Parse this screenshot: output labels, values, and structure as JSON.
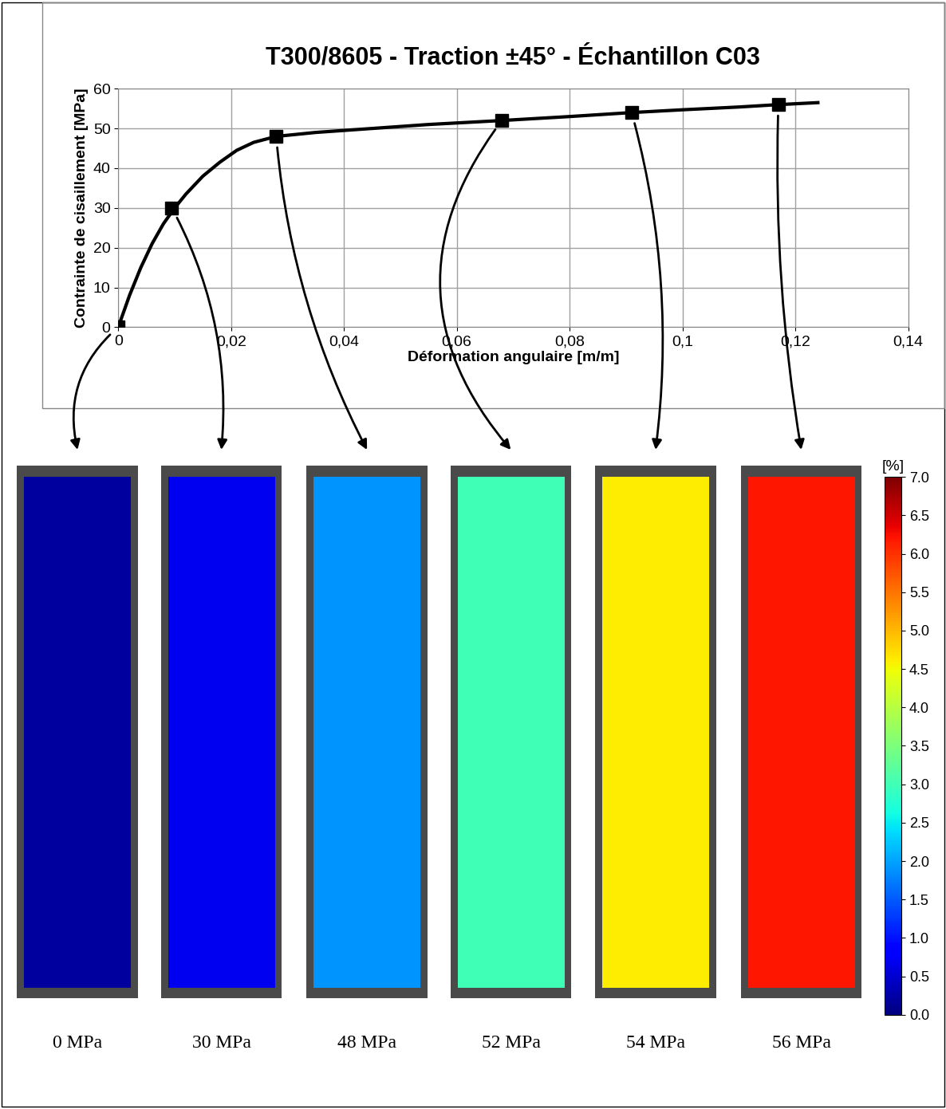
{
  "chart_data": {
    "type": "line",
    "title": "T300/8605 - Traction ±45° - Échantillon C03",
    "x_label": "Déformation angulaire [m/m]",
    "y_label": "Contrainte de cisaillement [MPa]",
    "xlim": [
      0,
      0.14
    ],
    "xticks": [
      {
        "value": 0,
        "label": "0"
      },
      {
        "value": 0.02,
        "label": "0,02"
      },
      {
        "value": 0.04,
        "label": "0,04"
      },
      {
        "value": 0.06,
        "label": "0,06"
      },
      {
        "value": 0.08,
        "label": "0,08"
      },
      {
        "value": 0.1,
        "label": "0,1"
      },
      {
        "value": 0.12,
        "label": "0,12"
      },
      {
        "value": 0.14,
        "label": "0,14"
      }
    ],
    "ylim": [
      0,
      60
    ],
    "yticks": [
      0,
      10,
      20,
      30,
      40,
      50,
      60
    ],
    "grid": true,
    "series": [
      {
        "type": "line",
        "color": "#000000",
        "line_style": "solid",
        "x": [
          0,
          0.002,
          0.004,
          0.006,
          0.008,
          0.01,
          0.012,
          0.015,
          0.018,
          0.021,
          0.024,
          0.028,
          0.035,
          0.045,
          0.055,
          0.068,
          0.08,
          0.091,
          0.1,
          0.11,
          0.117,
          0.124
        ],
        "values": [
          0,
          8,
          15,
          21,
          26,
          30,
          33.5,
          38,
          41.5,
          44.5,
          46.5,
          48,
          49,
          50,
          51,
          52,
          53,
          54,
          54.7,
          55.4,
          56,
          56.5
        ]
      },
      {
        "type": "scatter",
        "color": "#000000",
        "marker": "square",
        "x": [
          0,
          0.0095,
          0.028,
          0.068,
          0.091,
          0.117
        ],
        "values": [
          0,
          30,
          48,
          52,
          54,
          56
        ]
      }
    ],
    "strain_fields": [
      {
        "label": "0 MPa",
        "mean_strain": 0.2
      },
      {
        "label": "30 MPa",
        "mean_strain": 0.7
      },
      {
        "label": "48 MPa",
        "mean_strain": 1.9
      },
      {
        "label": "52 MPa",
        "mean_strain": 3.0
      },
      {
        "label": "54 MPa",
        "mean_strain": 4.6
      },
      {
        "label": "56 MPa",
        "mean_strain": 6.2
      }
    ],
    "colorbar": {
      "label": "[%]",
      "range": [
        0,
        7
      ],
      "ticks": [
        {
          "value": 0,
          "label": "0.0"
        },
        {
          "value": 0.5,
          "label": "0.5"
        },
        {
          "value": 1,
          "label": "1.0"
        },
        {
          "value": 1.5,
          "label": "1.5"
        },
        {
          "value": 2,
          "label": "2.0"
        },
        {
          "value": 2.5,
          "label": "2.5"
        },
        {
          "value": 3,
          "label": "3.0"
        },
        {
          "value": 3.5,
          "label": "3.5"
        },
        {
          "value": 4,
          "label": "4.0"
        },
        {
          "value": 4.5,
          "label": "4.5"
        },
        {
          "value": 5,
          "label": "5.0"
        },
        {
          "value": 5.5,
          "label": "5.5"
        },
        {
          "value": 6,
          "label": "6.0"
        },
        {
          "value": 6.5,
          "label": "6.5"
        },
        {
          "value": 7,
          "label": "7.0"
        }
      ]
    }
  }
}
